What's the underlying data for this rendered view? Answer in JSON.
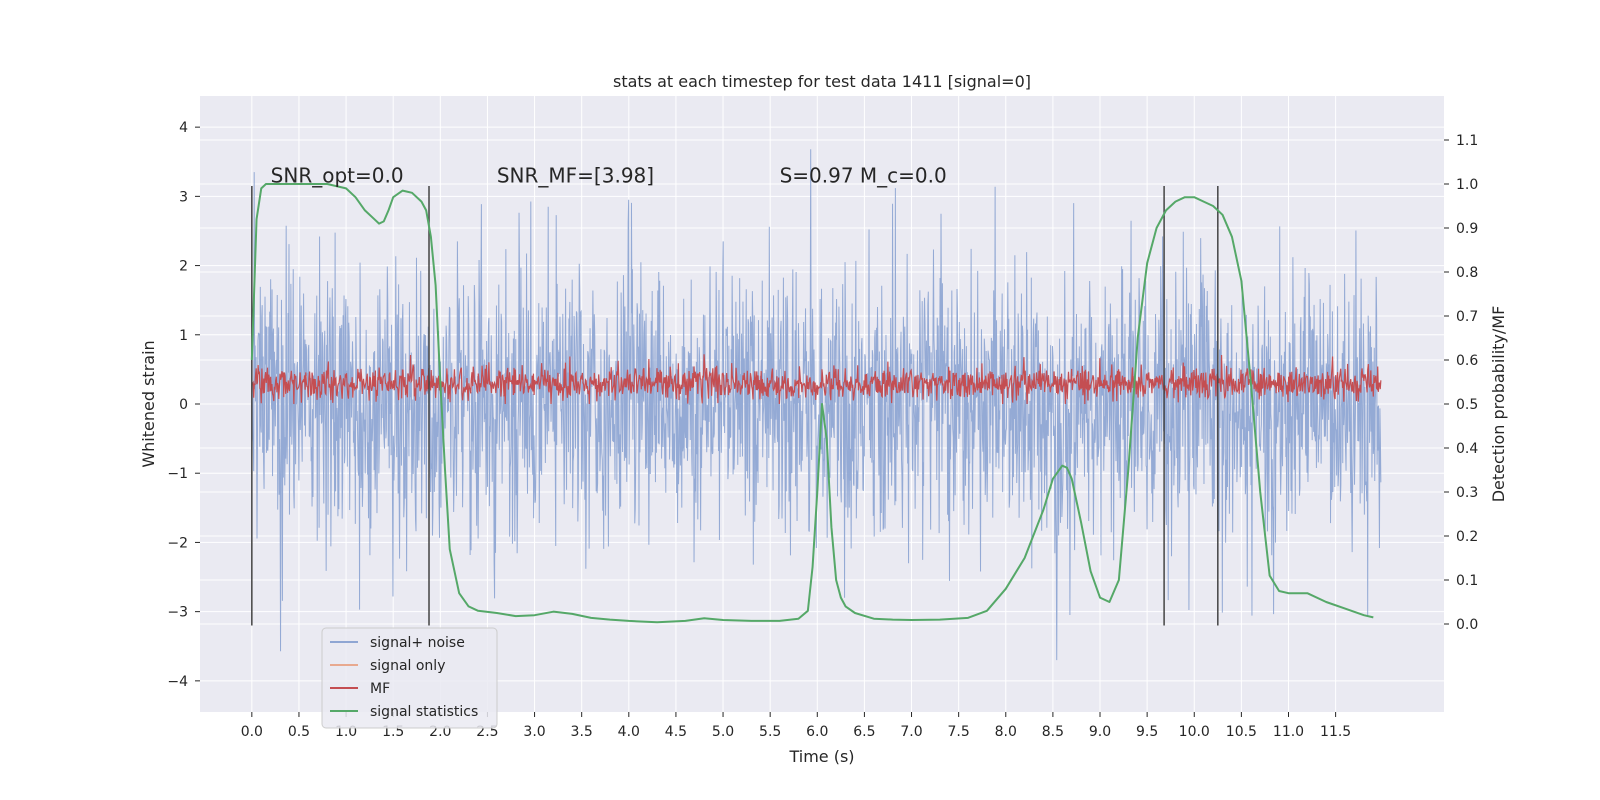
{
  "chart_data": {
    "type": "line",
    "title": "stats at each timestep for test data 1411 [signal=0]",
    "xlabel": "Time (s)",
    "ylabel": "Whitened strain",
    "y2label": "Detection probability/MF",
    "xlim": [
      -0.55,
      12.65
    ],
    "ylim": [
      -4.45,
      4.45
    ],
    "y2lim": [
      -0.2,
      1.2
    ],
    "xticks": [
      0.0,
      0.5,
      1.0,
      1.5,
      2.0,
      2.5,
      3.0,
      3.5,
      4.0,
      4.5,
      5.0,
      5.5,
      6.0,
      6.5,
      7.0,
      7.5,
      8.0,
      8.5,
      9.0,
      9.5,
      10.0,
      10.5,
      11.0,
      11.5
    ],
    "xtick_labels": [
      "0.0",
      "0.5",
      "1.0",
      "1.5",
      "2.0",
      "2.5",
      "3.0",
      "3.5",
      "4.0",
      "4.5",
      "5.0",
      "5.5",
      "6.0",
      "6.5",
      "7.0",
      "7.5",
      "8.0",
      "8.5",
      "9.0",
      "9.5",
      "10.0",
      "10.5",
      "11.0",
      "11.5"
    ],
    "yticks": [
      -4,
      -3,
      -2,
      -1,
      0,
      1,
      2,
      3,
      4
    ],
    "ytick_labels": [
      "−4",
      "−3",
      "−2",
      "−1",
      "0",
      "1",
      "2",
      "3",
      "4"
    ],
    "y2ticks": [
      0.0,
      0.1,
      0.2,
      0.3,
      0.4,
      0.5,
      0.6,
      0.7,
      0.8,
      0.9,
      1.0,
      1.1
    ],
    "y2tick_labels": [
      "0.0",
      "0.1",
      "0.2",
      "0.3",
      "0.4",
      "0.5",
      "0.6",
      "0.7",
      "0.8",
      "0.9",
      "1.0",
      "1.1"
    ],
    "annotations": [
      {
        "text": "SNR_opt=0.0",
        "x": 0.2,
        "y": 3.2
      },
      {
        "text": "SNR_MF=[3.98]",
        "x": 2.6,
        "y": 3.2
      },
      {
        "text": "S=0.97   M_c=0.0",
        "x": 5.6,
        "y": 3.2
      }
    ],
    "vlines": [
      {
        "x": 0.0,
        "ymin": -3.2,
        "ymax": 3.15
      },
      {
        "x": 1.88,
        "ymin": -3.2,
        "ymax": 3.15
      },
      {
        "x": 9.68,
        "ymin": -3.2,
        "ymax": 3.15
      },
      {
        "x": 10.25,
        "ymin": -3.2,
        "ymax": 3.15
      }
    ],
    "series": [
      {
        "name": "signal+ noise",
        "color": "#8fa6d3",
        "axis": "left",
        "kind": "noise",
        "t_start": 0.0,
        "t_end": 11.98,
        "sigma": 1.0,
        "max_abs": 4.05
      },
      {
        "name": "signal only",
        "color": "#e8a98f",
        "axis": "left",
        "kind": "flat",
        "values": []
      },
      {
        "name": "MF",
        "color": "#c44e52",
        "axis": "left",
        "kind": "noise",
        "t_start": 0.0,
        "t_end": 11.98,
        "center": 0.3,
        "sigma": 0.12,
        "max": 1.0,
        "min": 0.0
      },
      {
        "name": "signal statistics",
        "color": "#55a868",
        "axis": "right",
        "kind": "line",
        "x": [
          0.0,
          0.05,
          0.1,
          0.15,
          0.2,
          0.3,
          0.4,
          0.6,
          0.8,
          1.0,
          1.1,
          1.2,
          1.3,
          1.35,
          1.4,
          1.45,
          1.5,
          1.6,
          1.7,
          1.8,
          1.85,
          1.9,
          1.95,
          2.0,
          2.05,
          2.1,
          2.2,
          2.3,
          2.4,
          2.6,
          2.8,
          3.0,
          3.2,
          3.4,
          3.6,
          3.8,
          4.0,
          4.3,
          4.6,
          4.8,
          5.0,
          5.3,
          5.6,
          5.8,
          5.9,
          5.95,
          6.0,
          6.05,
          6.1,
          6.15,
          6.2,
          6.25,
          6.3,
          6.4,
          6.6,
          6.8,
          7.0,
          7.3,
          7.6,
          7.8,
          8.0,
          8.2,
          8.4,
          8.5,
          8.6,
          8.65,
          8.7,
          8.8,
          8.9,
          9.0,
          9.1,
          9.2,
          9.3,
          9.4,
          9.5,
          9.6,
          9.7,
          9.8,
          9.9,
          10.0,
          10.1,
          10.2,
          10.3,
          10.4,
          10.5,
          10.6,
          10.7,
          10.8,
          10.9,
          11.0,
          11.2,
          11.4,
          11.6,
          11.8,
          11.9
        ],
        "values": [
          0.6,
          0.92,
          0.99,
          1.0,
          1.0,
          1.0,
          1.0,
          1.0,
          1.0,
          0.99,
          0.97,
          0.94,
          0.92,
          0.91,
          0.915,
          0.94,
          0.97,
          0.985,
          0.98,
          0.96,
          0.94,
          0.88,
          0.77,
          0.55,
          0.35,
          0.17,
          0.07,
          0.04,
          0.03,
          0.025,
          0.018,
          0.02,
          0.028,
          0.023,
          0.014,
          0.01,
          0.007,
          0.004,
          0.007,
          0.013,
          0.009,
          0.007,
          0.007,
          0.012,
          0.03,
          0.13,
          0.3,
          0.5,
          0.42,
          0.22,
          0.1,
          0.06,
          0.04,
          0.025,
          0.012,
          0.01,
          0.009,
          0.01,
          0.014,
          0.03,
          0.08,
          0.15,
          0.26,
          0.33,
          0.36,
          0.355,
          0.33,
          0.23,
          0.12,
          0.06,
          0.05,
          0.1,
          0.35,
          0.65,
          0.82,
          0.9,
          0.94,
          0.96,
          0.97,
          0.97,
          0.96,
          0.95,
          0.93,
          0.88,
          0.78,
          0.55,
          0.3,
          0.11,
          0.075,
          0.07,
          0.07,
          0.05,
          0.035,
          0.02,
          0.015
        ]
      }
    ],
    "legend": {
      "placement": "lower-left",
      "entries": [
        "signal+ noise",
        "signal only",
        "MF",
        "signal statistics"
      ]
    },
    "grid": true
  }
}
